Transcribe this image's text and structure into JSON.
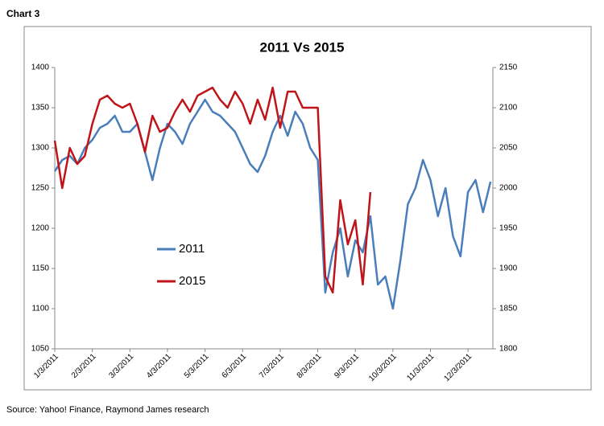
{
  "chart_data": {
    "type": "line",
    "caption": "Chart 3",
    "title": "2011 Vs 2015",
    "source": "Source: Yahoo! Finance, Raymond James research",
    "categories": [
      "1/3/2011",
      null,
      null,
      null,
      null,
      "2/3/2011",
      null,
      null,
      null,
      null,
      "3/3/2011",
      null,
      null,
      null,
      null,
      "4/3/2011",
      null,
      null,
      null,
      null,
      "5/3/2011",
      null,
      null,
      null,
      null,
      "6/3/2011",
      null,
      null,
      null,
      null,
      "7/3/2011",
      null,
      null,
      null,
      null,
      "8/3/2011",
      null,
      null,
      null,
      null,
      "9/3/2011",
      null,
      null,
      null,
      null,
      "10/3/2011",
      null,
      null,
      null,
      null,
      "11/3/2011",
      null,
      null,
      null,
      null,
      "12/3/2011",
      null,
      null,
      null
    ],
    "series": [
      {
        "name": "2011",
        "color": "#4a7ebb",
        "axis": "y",
        "values": [
          1271,
          1285,
          1290,
          1280,
          1300,
          1310,
          1325,
          1330,
          1340,
          1320,
          1320,
          1330,
          1295,
          1260,
          1300,
          1330,
          1320,
          1305,
          1330,
          1345,
          1360,
          1345,
          1340,
          1330,
          1320,
          1300,
          1280,
          1270,
          1290,
          1320,
          1340,
          1315,
          1345,
          1330,
          1300,
          1285,
          1120,
          1170,
          1200,
          1140,
          1185,
          1170,
          1215,
          1130,
          1140,
          1100,
          1160,
          1230,
          1250,
          1285,
          1260,
          1215,
          1250,
          1190,
          1165,
          1245,
          1260,
          1220,
          1258
        ]
      },
      {
        "name": "2015",
        "color": "#c0141b",
        "axis": "y2",
        "values": [
          2059,
          2000,
          2050,
          2030,
          2040,
          2080,
          2110,
          2115,
          2105,
          2100,
          2105,
          2080,
          2045,
          2090,
          2070,
          2075,
          2095,
          2110,
          2095,
          2115,
          2120,
          2125,
          2110,
          2100,
          2120,
          2105,
          2080,
          2110,
          2085,
          2125,
          2075,
          2120,
          2120,
          2100,
          2100,
          2100,
          1890,
          1870,
          1985,
          1930,
          1960,
          1880,
          1995,
          null,
          null,
          null,
          null,
          null,
          null,
          null,
          null,
          null,
          null,
          null,
          null,
          null,
          null,
          null,
          null
        ]
      }
    ],
    "ylim": [
      1050,
      1400
    ],
    "yticks": [
      1050,
      1100,
      1150,
      1200,
      1250,
      1300,
      1350,
      1400
    ],
    "y2lim": [
      1800,
      2150
    ],
    "y2ticks": [
      1800,
      1850,
      1900,
      1950,
      2000,
      2050,
      2100,
      2150
    ],
    "grid": false
  }
}
